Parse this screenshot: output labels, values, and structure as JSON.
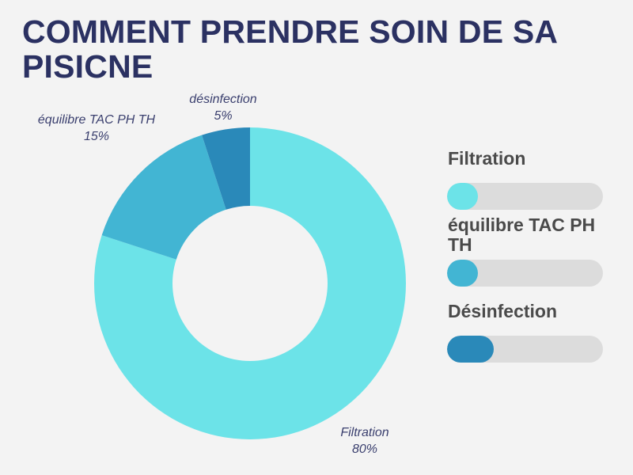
{
  "title": "COMMENT PRENDRE SOIN DE SA PISICNE",
  "chart_data": {
    "type": "pie",
    "slices": [
      {
        "label": "Filtration",
        "value": 80,
        "value_label": "80%",
        "color": "#6ce3e8"
      },
      {
        "label": "équilibre TAC PH TH",
        "value": 15,
        "value_label": "15%",
        "color": "#42b5d3"
      },
      {
        "label": "désinfection",
        "value": 5,
        "value_label": "5%",
        "color": "#2a89b9"
      }
    ]
  },
  "legend": [
    {
      "label": "Filtration",
      "fill_fraction": 0.2,
      "color": "#6ce3e8"
    },
    {
      "label": "équilibre  TAC PH TH",
      "fill_fraction": 0.2,
      "color": "#42b5d3"
    },
    {
      "label": "Désinfection",
      "fill_fraction": 0.3,
      "color": "#2a89b9"
    }
  ]
}
